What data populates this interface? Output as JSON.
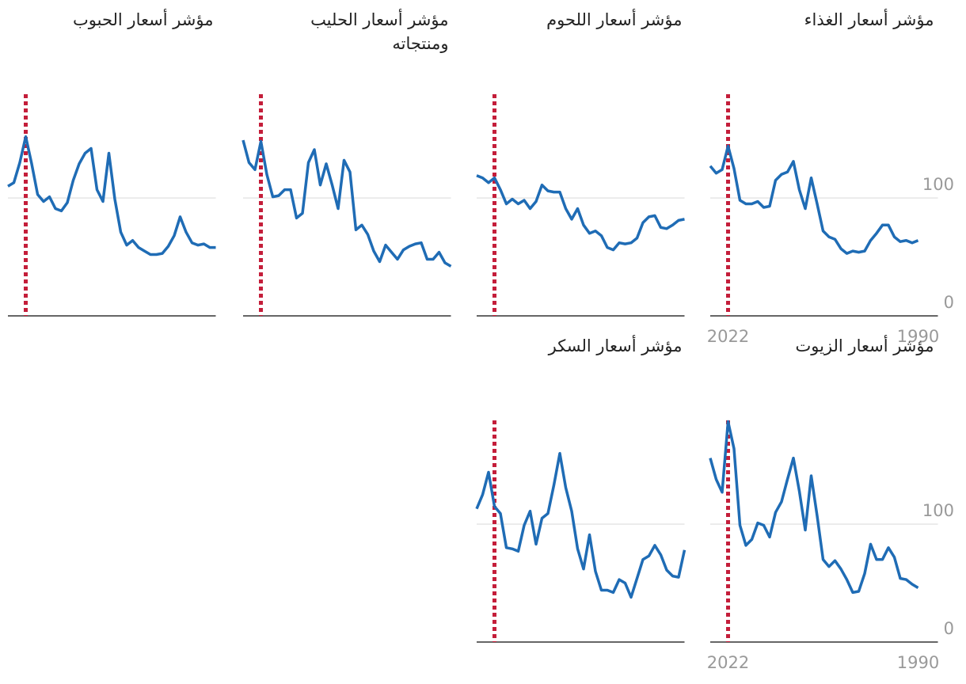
{
  "chart_data": [
    {
      "type": "line",
      "title": "مؤشر أسعار الغذاء",
      "x": [
        1990,
        1991,
        1992,
        1993,
        1994,
        1995,
        1996,
        1997,
        1998,
        1999,
        2000,
        2001,
        2002,
        2003,
        2004,
        2005,
        2006,
        2007,
        2008,
        2009,
        2010,
        2011,
        2012,
        2013,
        2014,
        2015,
        2016,
        2017,
        2018,
        2019,
        2020,
        2021,
        2022,
        2023,
        2024,
        2025
      ],
      "values": [
        64,
        62,
        64,
        63,
        67,
        77,
        77,
        70,
        64,
        55,
        54,
        55,
        53,
        57,
        65,
        67,
        72,
        95,
        117,
        91,
        107,
        131,
        122,
        120,
        115,
        93,
        92,
        97,
        95,
        95,
        98,
        125,
        144,
        124,
        121,
        127
      ],
      "color": "#1f6cb5",
      "marker_x": 2022,
      "marker_color": "#c41e3a",
      "xlim": [
        2025,
        1990
      ],
      "ylim": [
        0,
        190
      ],
      "yticks": [
        0,
        100
      ],
      "xticks": [
        2022,
        1990
      ],
      "grid": true
    },
    {
      "type": "line",
      "title": "مؤشر أسعار اللحوم",
      "x": [
        1990,
        1991,
        1992,
        1993,
        1994,
        1995,
        1996,
        1997,
        1998,
        1999,
        2000,
        2001,
        2002,
        2003,
        2004,
        2005,
        2006,
        2007,
        2008,
        2009,
        2010,
        2011,
        2012,
        2013,
        2014,
        2015,
        2016,
        2017,
        2018,
        2019,
        2020,
        2021,
        2022,
        2023,
        2024,
        2025
      ],
      "values": [
        82,
        81,
        77,
        74,
        75,
        85,
        84,
        79,
        66,
        62,
        61,
        62,
        56,
        58,
        68,
        72,
        70,
        77,
        91,
        82,
        91,
        105,
        105,
        106,
        111,
        97,
        91,
        98,
        95,
        99,
        95,
        107,
        117,
        113,
        117,
        119
      ],
      "color": "#1f6cb5",
      "marker_x": 2022,
      "marker_color": "#c41e3a",
      "xlim": [
        2025,
        1990
      ],
      "ylim": [
        0,
        190
      ],
      "yticks": [
        0,
        100
      ],
      "grid": true
    },
    {
      "type": "line",
      "title": "مؤشر أسعار الحليب ومنتجاته",
      "x": [
        1990,
        1991,
        1992,
        1993,
        1994,
        1995,
        1996,
        1997,
        1998,
        1999,
        2000,
        2001,
        2002,
        2003,
        2004,
        2005,
        2006,
        2007,
        2008,
        2009,
        2010,
        2011,
        2012,
        2013,
        2014,
        2015,
        2016,
        2017,
        2018,
        2019,
        2020,
        2021,
        2022,
        2023,
        2024,
        2025
      ],
      "values": [
        42,
        45,
        54,
        48,
        48,
        62,
        61,
        59,
        56,
        48,
        54,
        60,
        46,
        55,
        69,
        77,
        73,
        122,
        132,
        91,
        111,
        129,
        111,
        141,
        130,
        87,
        83,
        107,
        107,
        102,
        101,
        120,
        148,
        124,
        130,
        149
      ],
      "color": "#1f6cb5",
      "marker_x": 2022,
      "marker_color": "#c41e3a",
      "xlim": [
        2025,
        1990
      ],
      "ylim": [
        0,
        190
      ],
      "yticks": [
        0,
        100
      ],
      "grid": true
    },
    {
      "type": "line",
      "title": "مؤشر أسعار الحبوب",
      "x": [
        1990,
        1991,
        1992,
        1993,
        1994,
        1995,
        1996,
        1997,
        1998,
        1999,
        2000,
        2001,
        2002,
        2003,
        2004,
        2005,
        2006,
        2007,
        2008,
        2009,
        2010,
        2011,
        2012,
        2013,
        2014,
        2015,
        2016,
        2017,
        2018,
        2019,
        2020,
        2021,
        2022,
        2023,
        2024,
        2025
      ],
      "values": [
        58,
        58,
        61,
        60,
        62,
        71,
        84,
        68,
        59,
        53,
        52,
        52,
        55,
        58,
        64,
        60,
        71,
        99,
        138,
        97,
        107,
        142,
        138,
        129,
        115,
        96,
        89,
        91,
        101,
        97,
        103,
        129,
        152,
        130,
        113,
        110
      ],
      "color": "#1f6cb5",
      "marker_x": 2022,
      "marker_color": "#c41e3a",
      "xlim": [
        2025,
        1990
      ],
      "ylim": [
        0,
        190
      ],
      "yticks": [
        0,
        100
      ],
      "grid": true
    },
    {
      "type": "line",
      "title": "مؤشر أسعار الزيوت",
      "x": [
        1990,
        1991,
        1992,
        1993,
        1994,
        1995,
        1996,
        1997,
        1998,
        1999,
        2000,
        2001,
        2002,
        2003,
        2004,
        2005,
        2006,
        2007,
        2008,
        2009,
        2010,
        2011,
        2012,
        2013,
        2014,
        2015,
        2016,
        2017,
        2018,
        2019,
        2020,
        2021,
        2022,
        2023,
        2024,
        2025
      ],
      "values": [
        46,
        49,
        53,
        54,
        72,
        80,
        70,
        70,
        83,
        58,
        43,
        42,
        53,
        62,
        69,
        64,
        70,
        107,
        141,
        95,
        128,
        156,
        138,
        119,
        110,
        89,
        99,
        101,
        87,
        82,
        99,
        164,
        187,
        127,
        138,
        156
      ],
      "color": "#1f6cb5",
      "marker_x": 2022,
      "marker_color": "#c41e3a",
      "xlim": [
        2025,
        1990
      ],
      "ylim": [
        0,
        190
      ],
      "yticks": [
        0,
        100
      ],
      "xticks": [
        2022,
        1990
      ],
      "grid": true
    },
    {
      "type": "line",
      "title": "مؤشر أسعار السكر",
      "x": [
        1990,
        1991,
        1992,
        1993,
        1994,
        1995,
        1996,
        1997,
        1998,
        1999,
        2000,
        2001,
        2002,
        2003,
        2004,
        2005,
        2006,
        2007,
        2008,
        2009,
        2010,
        2011,
        2012,
        2013,
        2014,
        2015,
        2016,
        2017,
        2018,
        2019,
        2020,
        2021,
        2022,
        2023,
        2024,
        2025
      ],
      "values": [
        78,
        55,
        56,
        61,
        74,
        82,
        73,
        70,
        54,
        38,
        50,
        53,
        42,
        44,
        44,
        60,
        91,
        62,
        79,
        111,
        131,
        160,
        133,
        109,
        105,
        83,
        111,
        99,
        77,
        79,
        80,
        109,
        115,
        144,
        125,
        113
      ],
      "color": "#1f6cb5",
      "marker_x": 2022,
      "marker_color": "#c41e3a",
      "xlim": [
        2025,
        1990
      ],
      "ylim": [
        0,
        190
      ],
      "yticks": [
        0,
        100
      ],
      "grid": true
    }
  ]
}
